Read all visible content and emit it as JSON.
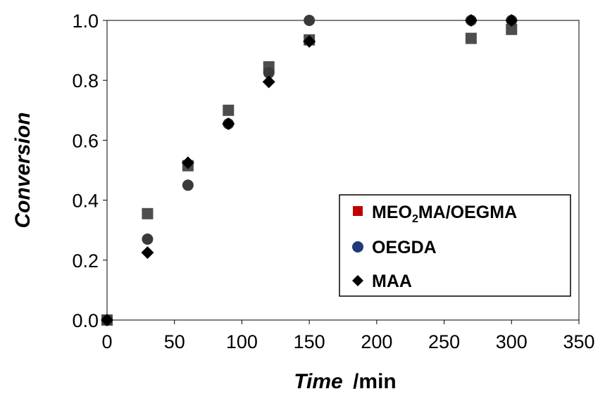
{
  "chart_data": {
    "type": "scatter",
    "xlabel_italic": "Time",
    "xlabel_rest": "/min",
    "ylabel": "Conversion",
    "xlim": [
      0,
      350
    ],
    "ylim": [
      0,
      1.0
    ],
    "xticks": [
      "0",
      "50",
      "100",
      "150",
      "200",
      "250",
      "300",
      "350"
    ],
    "yticks": [
      "0.0",
      "0.2",
      "0.4",
      "0.6",
      "0.8",
      "1.0"
    ],
    "grid": false,
    "legend_position": "lower-right",
    "series": [
      {
        "name_parts": [
          "MEO",
          "2",
          "MA/OEGMA"
        ],
        "marker": "square",
        "legend_color": "#c00000",
        "color": "#4d4d4d",
        "x": [
          0,
          30,
          60,
          90,
          120,
          150,
          270,
          300
        ],
        "y": [
          0.0,
          0.355,
          0.515,
          0.7,
          0.845,
          0.935,
          0.94,
          0.97
        ]
      },
      {
        "name": "OEGDA",
        "marker": "circle",
        "legend_color": "#1f3a7a",
        "color": "#3a3a3a",
        "x": [
          0,
          30,
          60,
          90,
          120,
          150,
          270,
          300
        ],
        "y": [
          0.0,
          0.27,
          0.45,
          0.655,
          0.825,
          1.0,
          1.0,
          1.0
        ]
      },
      {
        "name": "MAA",
        "marker": "diamond",
        "legend_color": "#000000",
        "color": "#000000",
        "x": [
          0,
          30,
          60,
          90,
          120,
          150,
          270,
          300
        ],
        "y": [
          0.0,
          0.225,
          0.525,
          0.655,
          0.795,
          0.93,
          1.0,
          1.0
        ]
      }
    ]
  }
}
